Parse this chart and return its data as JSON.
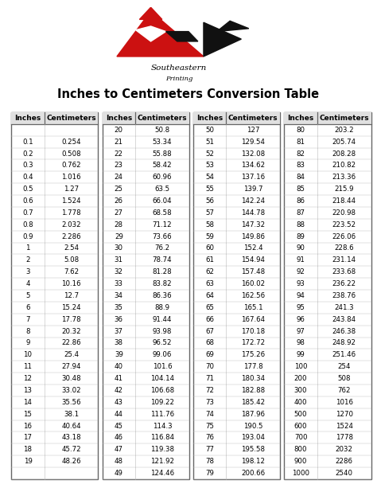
{
  "title": "Inches to Centimeters Conversion Table",
  "logo_text_line1": "Southeastern",
  "logo_text_line2": "Printing",
  "background_color": "#ffffff",
  "col1": {
    "headers": [
      "Inches",
      "Centimeters"
    ],
    "rows": [
      [
        "",
        ""
      ],
      [
        "0.1",
        "0.254"
      ],
      [
        "0.2",
        "0.508"
      ],
      [
        "0.3",
        "0.762"
      ],
      [
        "0.4",
        "1.016"
      ],
      [
        "0.5",
        "1.27"
      ],
      [
        "0.6",
        "1.524"
      ],
      [
        "0.7",
        "1.778"
      ],
      [
        "0.8",
        "2.032"
      ],
      [
        "0.9",
        "2.286"
      ],
      [
        "1",
        "2.54"
      ],
      [
        "2",
        "5.08"
      ],
      [
        "3",
        "7.62"
      ],
      [
        "4",
        "10.16"
      ],
      [
        "5",
        "12.7"
      ],
      [
        "6",
        "15.24"
      ],
      [
        "7",
        "17.78"
      ],
      [
        "8",
        "20.32"
      ],
      [
        "9",
        "22.86"
      ],
      [
        "10",
        "25.4"
      ],
      [
        "11",
        "27.94"
      ],
      [
        "12",
        "30.48"
      ],
      [
        "13",
        "33.02"
      ],
      [
        "14",
        "35.56"
      ],
      [
        "15",
        "38.1"
      ],
      [
        "16",
        "40.64"
      ],
      [
        "17",
        "43.18"
      ],
      [
        "18",
        "45.72"
      ],
      [
        "19",
        "48.26"
      ],
      [
        "",
        ""
      ]
    ]
  },
  "col2": {
    "headers": [
      "Inches",
      "Centimeters"
    ],
    "rows": [
      [
        "20",
        "50.8"
      ],
      [
        "21",
        "53.34"
      ],
      [
        "22",
        "55.88"
      ],
      [
        "23",
        "58.42"
      ],
      [
        "24",
        "60.96"
      ],
      [
        "25",
        "63.5"
      ],
      [
        "26",
        "66.04"
      ],
      [
        "27",
        "68.58"
      ],
      [
        "28",
        "71.12"
      ],
      [
        "29",
        "73.66"
      ],
      [
        "30",
        "76.2"
      ],
      [
        "31",
        "78.74"
      ],
      [
        "32",
        "81.28"
      ],
      [
        "33",
        "83.82"
      ],
      [
        "34",
        "86.36"
      ],
      [
        "35",
        "88.9"
      ],
      [
        "36",
        "91.44"
      ],
      [
        "37",
        "93.98"
      ],
      [
        "38",
        "96.52"
      ],
      [
        "39",
        "99.06"
      ],
      [
        "40",
        "101.6"
      ],
      [
        "41",
        "104.14"
      ],
      [
        "42",
        "106.68"
      ],
      [
        "43",
        "109.22"
      ],
      [
        "44",
        "111.76"
      ],
      [
        "45",
        "114.3"
      ],
      [
        "46",
        "116.84"
      ],
      [
        "47",
        "119.38"
      ],
      [
        "48",
        "121.92"
      ],
      [
        "49",
        "124.46"
      ]
    ]
  },
  "col3": {
    "headers": [
      "Inches",
      "Centimeters"
    ],
    "rows": [
      [
        "50",
        "127"
      ],
      [
        "51",
        "129.54"
      ],
      [
        "52",
        "132.08"
      ],
      [
        "53",
        "134.62"
      ],
      [
        "54",
        "137.16"
      ],
      [
        "55",
        "139.7"
      ],
      [
        "56",
        "142.24"
      ],
      [
        "57",
        "144.78"
      ],
      [
        "58",
        "147.32"
      ],
      [
        "59",
        "149.86"
      ],
      [
        "60",
        "152.4"
      ],
      [
        "61",
        "154.94"
      ],
      [
        "62",
        "157.48"
      ],
      [
        "63",
        "160.02"
      ],
      [
        "64",
        "162.56"
      ],
      [
        "65",
        "165.1"
      ],
      [
        "66",
        "167.64"
      ],
      [
        "67",
        "170.18"
      ],
      [
        "68",
        "172.72"
      ],
      [
        "69",
        "175.26"
      ],
      [
        "70",
        "177.8"
      ],
      [
        "71",
        "180.34"
      ],
      [
        "72",
        "182.88"
      ],
      [
        "73",
        "185.42"
      ],
      [
        "74",
        "187.96"
      ],
      [
        "75",
        "190.5"
      ],
      [
        "76",
        "193.04"
      ],
      [
        "77",
        "195.58"
      ],
      [
        "78",
        "198.12"
      ],
      [
        "79",
        "200.66"
      ]
    ]
  },
  "col4": {
    "headers": [
      "Inches",
      "Centimeters"
    ],
    "rows": [
      [
        "80",
        "203.2"
      ],
      [
        "81",
        "205.74"
      ],
      [
        "82",
        "208.28"
      ],
      [
        "83",
        "210.82"
      ],
      [
        "84",
        "213.36"
      ],
      [
        "85",
        "215.9"
      ],
      [
        "86",
        "218.44"
      ],
      [
        "87",
        "220.98"
      ],
      [
        "88",
        "223.52"
      ],
      [
        "89",
        "226.06"
      ],
      [
        "90",
        "228.6"
      ],
      [
        "91",
        "231.14"
      ],
      [
        "92",
        "233.68"
      ],
      [
        "93",
        "236.22"
      ],
      [
        "94",
        "238.76"
      ],
      [
        "95",
        "241.3"
      ],
      [
        "96",
        "243.84"
      ],
      [
        "97",
        "246.38"
      ],
      [
        "98",
        "248.92"
      ],
      [
        "99",
        "251.46"
      ],
      [
        "100",
        "254"
      ],
      [
        "200",
        "508"
      ],
      [
        "300",
        "762"
      ],
      [
        "400",
        "1016"
      ],
      [
        "500",
        "1270"
      ],
      [
        "600",
        "1524"
      ],
      [
        "700",
        "1778"
      ],
      [
        "800",
        "2032"
      ],
      [
        "900",
        "2286"
      ],
      [
        "1000",
        "2540"
      ]
    ]
  },
  "font_size": 6.2,
  "header_font_size": 6.5
}
